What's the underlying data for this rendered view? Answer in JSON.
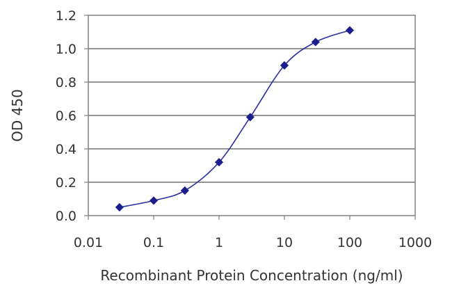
{
  "chart_data": {
    "type": "line",
    "title": "",
    "xlabel": "Recombinant Protein Concentration (ng/ml)",
    "ylabel": "OD 450",
    "x_scale": "log",
    "xlim": [
      0.01,
      1000
    ],
    "ylim": [
      0.0,
      1.2
    ],
    "x_ticks": [
      0.01,
      0.1,
      1,
      10,
      100,
      1000
    ],
    "x_tick_labels": [
      "0.01",
      "0.1",
      "1",
      "10",
      "100",
      "1000"
    ],
    "y_ticks": [
      0.0,
      0.2,
      0.4,
      0.6,
      0.8,
      1.0,
      1.2
    ],
    "y_tick_labels": [
      "0.0",
      "0.2",
      "0.4",
      "0.6",
      "0.8",
      "1.0",
      "1.2"
    ],
    "grid": "horizontal",
    "legend": "none",
    "series": [
      {
        "x": [
          0.03,
          0.1,
          0.3,
          1,
          3,
          10,
          30,
          100
        ],
        "y": [
          0.05,
          0.09,
          0.15,
          0.32,
          0.59,
          0.9,
          1.04,
          1.11
        ],
        "color": "#2a2f9c",
        "marker": "diamond"
      }
    ],
    "colors": {
      "frame": "#808080",
      "grid": "#707070",
      "line": "#2a2f9c",
      "marker": "#1a1f8c"
    }
  }
}
